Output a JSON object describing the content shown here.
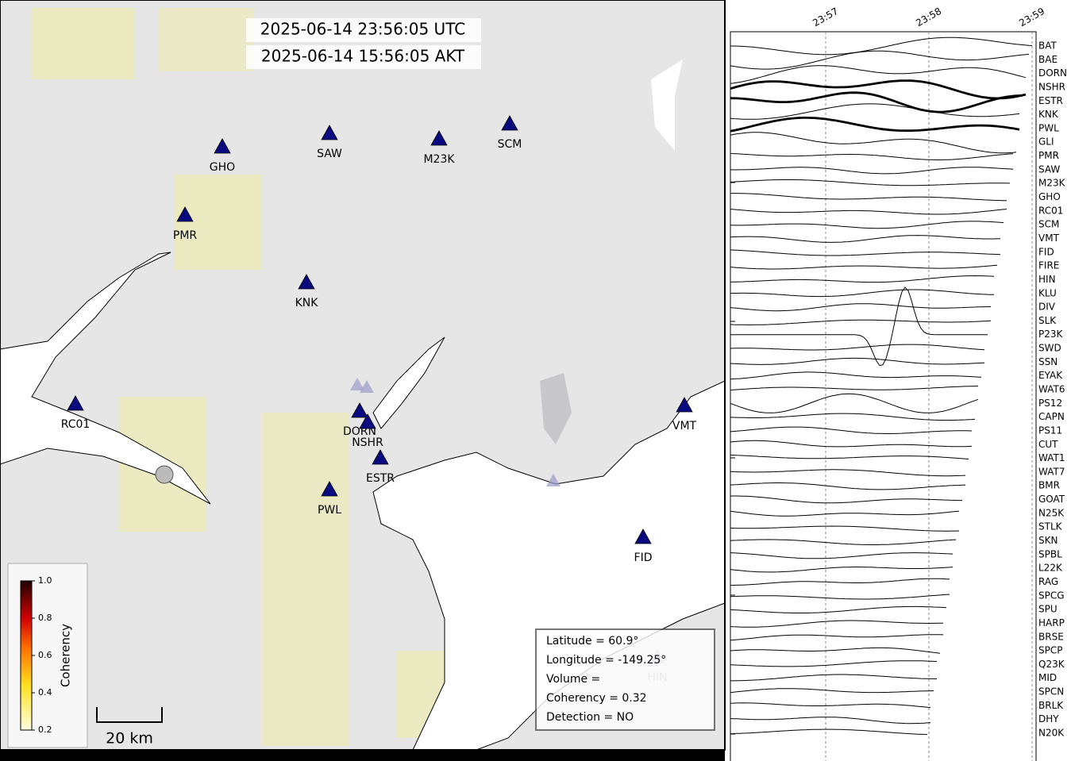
{
  "header": {
    "times": [
      "2025-06-14 23:56:05 UTC",
      "2025-06-14 15:56:05 AKT"
    ]
  },
  "map": {
    "stations": [
      "GHO",
      "SAW",
      "M23K",
      "SCM",
      "PMR",
      "KNK",
      "RC01",
      "DORN",
      "NSHR",
      "ESTR",
      "PWL",
      "VMT",
      "FID",
      "HIN"
    ],
    "scale_bar": "20 km",
    "colorbar": {
      "label": "Coherency",
      "lim": [
        0.2,
        1.0
      ],
      "ticks": [
        0.2,
        0.4,
        0.6,
        0.8,
        {
          "value": 1.0,
          "label": "1.0"
        }
      ]
    },
    "info": [
      "Latitude = 60.9°",
      "Longitude = -149.25°",
      "Volume =",
      "Coherency = 0.32",
      "Detection = NO"
    ]
  },
  "seismograms": {
    "time_ticks": [
      "23:57",
      "23:58",
      "23:59"
    ],
    "stations": [
      "BAT",
      "BAE",
      "DORN",
      "NSHR",
      "ESTR",
      "KNK",
      "PWL",
      "GLI",
      "PMR",
      "SAW",
      "M23K",
      "GHO",
      "RC01",
      "SCM",
      "VMT",
      "FID",
      "FIRE",
      "HIN",
      "KLU",
      "DIV",
      "SLK",
      "P23K",
      "SWD",
      "SSN",
      "EYAK",
      "WAT6",
      "PS12",
      "CAPN",
      "PS11",
      "CUT",
      "WAT1",
      "WAT7",
      "BMR",
      "GOAT",
      "N25K",
      "STLK",
      "SKN",
      "SPBL",
      "L22K",
      "RAG",
      "SPCG",
      "SPU",
      "HARP",
      "BRSE",
      "SPCP",
      "Q23K",
      "MID",
      "SPCN",
      "BRLK",
      "DHY",
      "N20K"
    ]
  }
}
